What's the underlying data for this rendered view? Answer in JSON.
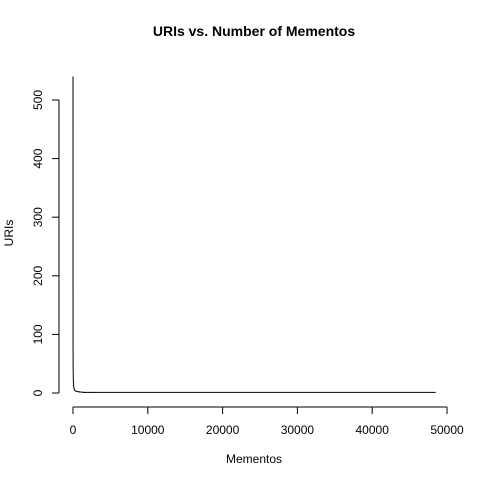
{
  "chart_data": {
    "type": "line",
    "title": "URIs vs. Number of Mementos",
    "xlabel": "Mementos",
    "ylabel": "URIs",
    "xlim": [
      0,
      50000
    ],
    "ylim": [
      0,
      500
    ],
    "xticks": [
      0,
      10000,
      20000,
      30000,
      40000,
      50000
    ],
    "xtick_labels": [
      "0",
      "10000",
      "20000",
      "30000",
      "40000",
      "50000"
    ],
    "yticks": [
      0,
      100,
      200,
      300,
      400,
      500
    ],
    "ytick_labels": [
      "0",
      "100",
      "200",
      "300",
      "400",
      "500"
    ],
    "grid": false,
    "series": [
      {
        "x": [
          1,
          2,
          5,
          10,
          20,
          50,
          100,
          200,
          400,
          800,
          1500,
          2400,
          5000,
          10000,
          20000,
          30000,
          40000,
          48500
        ],
        "y": [
          540,
          300,
          150,
          80,
          40,
          20,
          10,
          5,
          3,
          2,
          1,
          1,
          1,
          1,
          1,
          1,
          1,
          1
        ]
      }
    ]
  }
}
